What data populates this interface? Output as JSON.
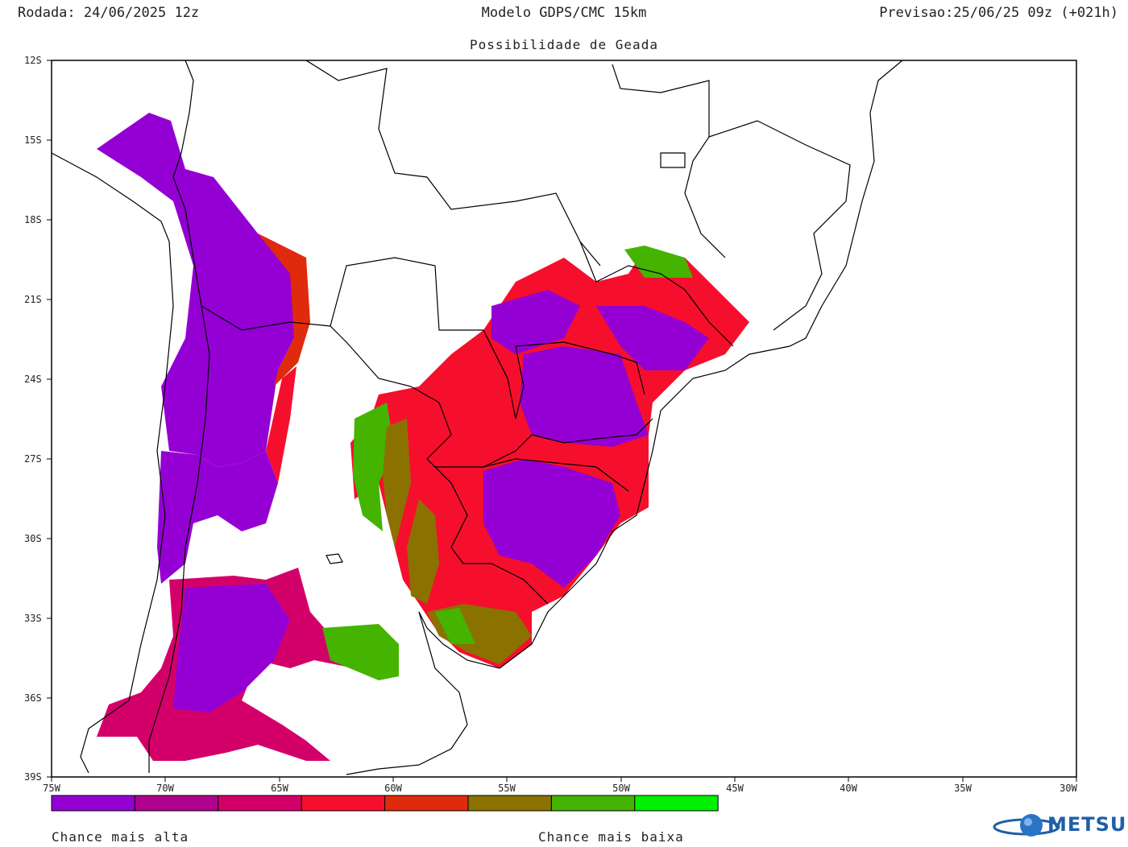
{
  "header": {
    "run": "Rodada: 24/06/2025 12z",
    "model": "Modelo GDPS/CMC 15km",
    "valid": "Previsao:25/06/25 09z (+021h)",
    "subtitle": "Possibilidade de Geada"
  },
  "axes": {
    "lat_labels": [
      "12S",
      "15S",
      "18S",
      "21S",
      "24S",
      "27S",
      "30S",
      "33S",
      "36S",
      "39S"
    ],
    "lon_labels": [
      "75W",
      "70W",
      "65W",
      "60W",
      "55W",
      "50W",
      "45W",
      "40W",
      "35W",
      "30W"
    ]
  },
  "legend": {
    "colors": [
      "#9400d3",
      "#b0008e",
      "#d4006a",
      "#f50f2d",
      "#e02a0c",
      "#8b7200",
      "#44b400",
      "#00f000"
    ],
    "left_label": "Chance mais alta",
    "right_label": "Chance mais baixa"
  },
  "logo": {
    "text": "METSUL",
    "icon": "globe-swoosh-icon"
  }
}
